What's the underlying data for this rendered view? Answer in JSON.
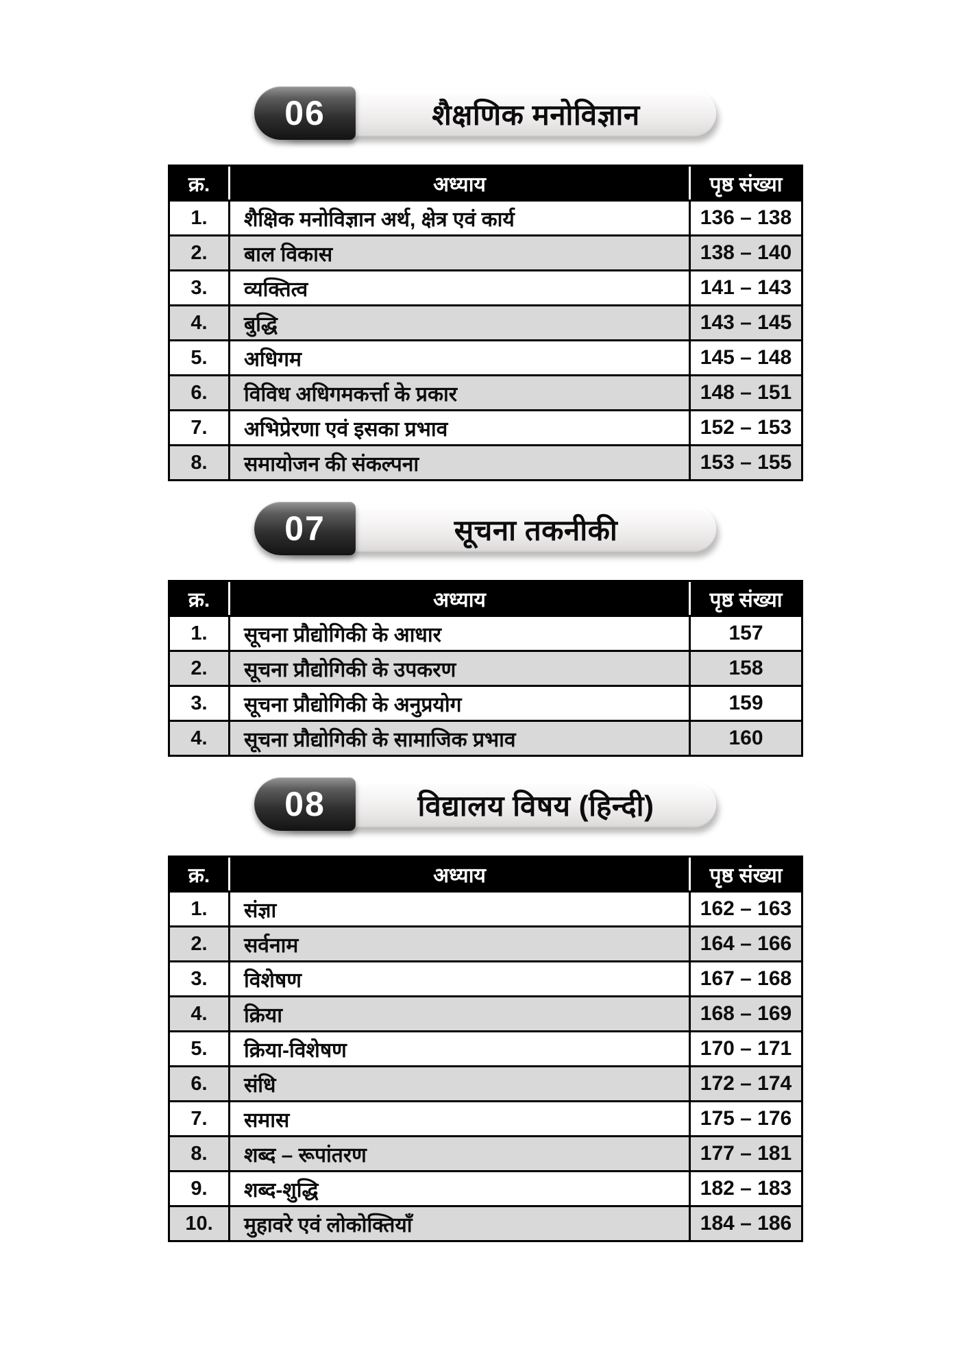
{
  "colors": {
    "page_bg": "#ffffff",
    "table_header_bg": "#000000",
    "table_header_text": "#ffffff",
    "row_alt_bg": "#d9d9d9",
    "row_bg": "#ffffff",
    "badge_dark": "#141414",
    "pill_light": "#f1efef"
  },
  "table_headers": {
    "serial": "क्र.",
    "chapter": "अध्याय",
    "pages": "पृष्ठ संख्या"
  },
  "sections": [
    {
      "number": "06",
      "title": "शैक्षणिक मनोविज्ञान",
      "rows": [
        {
          "sn": "1.",
          "chapter": "शैक्षिक मनोविज्ञान अर्थ, क्षेत्र एवं कार्य",
          "pages": "136 – 138"
        },
        {
          "sn": "2.",
          "chapter": "बाल विकास",
          "pages": "138 – 140"
        },
        {
          "sn": "3.",
          "chapter": "व्यक्तित्व",
          "pages": "141 – 143"
        },
        {
          "sn": "4.",
          "chapter": "बुद्धि",
          "pages": "143 – 145"
        },
        {
          "sn": "5.",
          "chapter": "अधिगम",
          "pages": "145 – 148"
        },
        {
          "sn": "6.",
          "chapter": "विविध अधिगमकर्त्ता के प्रकार",
          "pages": "148 – 151"
        },
        {
          "sn": "7.",
          "chapter": "अभिप्रेरणा एवं इसका प्रभाव",
          "pages": "152 – 153"
        },
        {
          "sn": "8.",
          "chapter": "समायोजन की संकल्पना",
          "pages": "153 – 155"
        }
      ]
    },
    {
      "number": "07",
      "title": "सूचना तकनीकी",
      "rows": [
        {
          "sn": "1.",
          "chapter": "सूचना प्रौद्योगिकी के आधार",
          "pages": "157"
        },
        {
          "sn": "2.",
          "chapter": "सूचना प्रौद्योगिकी के उपकरण",
          "pages": "158"
        },
        {
          "sn": "3.",
          "chapter": "सूचना प्रौद्योगिकी के अनुप्रयोग",
          "pages": "159"
        },
        {
          "sn": "4.",
          "chapter": "सूचना प्रौद्योगिकी के सामाजिक प्रभाव",
          "pages": "160"
        }
      ]
    },
    {
      "number": "08",
      "title": "विद्यालय विषय (हिन्दी)",
      "rows": [
        {
          "sn": "1.",
          "chapter": "संज्ञा",
          "pages": "162 – 163"
        },
        {
          "sn": "2.",
          "chapter": "सर्वनाम",
          "pages": "164 – 166"
        },
        {
          "sn": "3.",
          "chapter": "विशेषण",
          "pages": "167 – 168"
        },
        {
          "sn": "4.",
          "chapter": "क्रिया",
          "pages": "168 – 169"
        },
        {
          "sn": "5.",
          "chapter": "क्रिया-विशेषण",
          "pages": "170 – 171"
        },
        {
          "sn": "6.",
          "chapter": "संधि",
          "pages": "172 – 174"
        },
        {
          "sn": "7.",
          "chapter": "समास",
          "pages": "175 – 176"
        },
        {
          "sn": "8.",
          "chapter": "शब्द – रूपांतरण",
          "pages": "177 – 181"
        },
        {
          "sn": "9.",
          "chapter": "शब्द-शुद्धि",
          "pages": "182 – 183"
        },
        {
          "sn": "10.",
          "chapter": "मुहावरे एवं लोकोक्तियाँ",
          "pages": "184 – 186"
        }
      ]
    }
  ]
}
